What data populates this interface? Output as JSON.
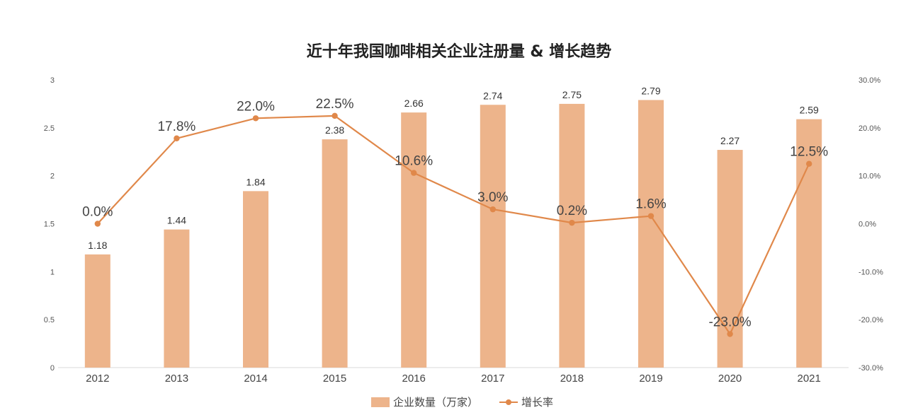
{
  "chart_data": {
    "type": "bar",
    "title": "近十年我国咖啡相关企业注册量 & 增长趋势",
    "categories": [
      "2012",
      "2013",
      "2014",
      "2015",
      "2016",
      "2017",
      "2018",
      "2019",
      "2020",
      "2021"
    ],
    "series": [
      {
        "name": "企业数量（万家）",
        "type": "bar",
        "axis": "left",
        "values": [
          1.18,
          1.44,
          1.84,
          2.38,
          2.66,
          2.74,
          2.75,
          2.79,
          2.27,
          2.59
        ],
        "labels": [
          "1.18",
          "1.44",
          "1.84",
          "2.38",
          "2.66",
          "2.74",
          "2.75",
          "2.79",
          "2.27",
          "2.59"
        ],
        "color": "#EDB48B"
      },
      {
        "name": "增长率",
        "type": "line",
        "axis": "right",
        "values": [
          0.0,
          17.8,
          22.0,
          22.5,
          10.6,
          3.0,
          0.2,
          1.6,
          -23.0,
          12.5
        ],
        "labels": [
          "0.0%",
          "17.8%",
          "22.0%",
          "22.5%",
          "10.6%",
          "3.0%",
          "0.2%",
          "1.6%",
          "-23.0%",
          "12.5%"
        ],
        "color": "#E0884A"
      }
    ],
    "y_left": {
      "range": [
        0,
        3
      ],
      "ticks": [
        "0",
        "0.5",
        "1",
        "1.5",
        "2",
        "2.5",
        "3"
      ]
    },
    "y_right": {
      "range": [
        -30,
        30
      ],
      "ticks": [
        "-30.0%",
        "-20.0%",
        "-10.0%",
        "0.0%",
        "10.0%",
        "20.0%",
        "30.0%"
      ]
    },
    "grid": false,
    "legend": "bottom-center"
  }
}
